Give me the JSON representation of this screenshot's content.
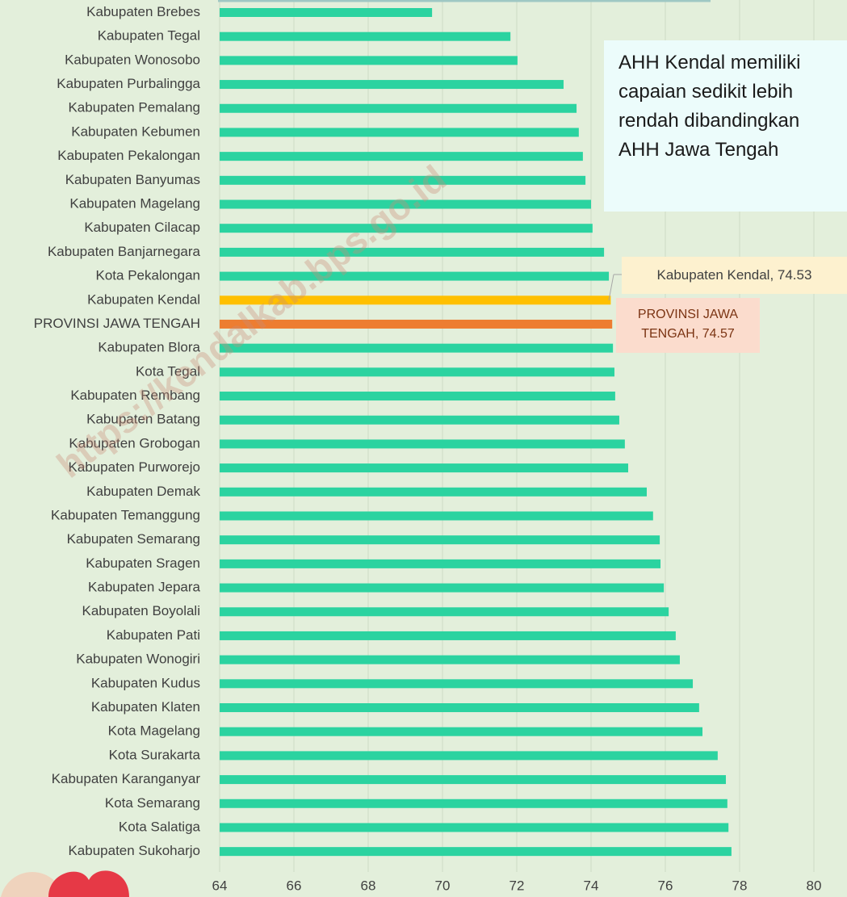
{
  "chart_data": {
    "type": "hbar",
    "categories": [
      "Kabupaten Brebes",
      "Kabupaten Tegal",
      "Kabupaten Wonosobo",
      "Kabupaten Purbalingga",
      "Kabupaten Pemalang",
      "Kabupaten Kebumen",
      "Kabupaten Pekalongan",
      "Kabupaten Banyumas",
      "Kabupaten Magelang",
      "Kabupaten Cilacap",
      "Kabupaten Banjarnegara",
      "Kota Pekalongan",
      "Kabupaten Kendal",
      "PROVINSI JAWA TENGAH",
      "Kabupaten Blora",
      "Kota Tegal",
      "Kabupaten Rembang",
      "Kabupaten Batang",
      "Kabupaten Grobogan",
      "Kabupaten Purworejo",
      "Kabupaten Demak",
      "Kabupaten Temanggung",
      "Kabupaten Semarang",
      "Kabupaten Sragen",
      "Kabupaten Jepara",
      "Kabupaten Boyolali",
      "Kabupaten Pati",
      "Kabupaten Wonogiri",
      "Kabupaten Kudus",
      "Kabupaten Klaten",
      "Kota Magelang",
      "Kota Surakarta",
      "Kabupaten Karanganyar",
      "Kota Semarang",
      "Kota Salatiga",
      "Kabupaten Sukoharjo"
    ],
    "values": [
      69.72,
      71.83,
      72.02,
      73.26,
      73.61,
      73.67,
      73.78,
      73.85,
      74.0,
      74.04,
      74.35,
      74.48,
      74.53,
      74.57,
      74.59,
      74.63,
      74.65,
      74.76,
      74.91,
      75.0,
      75.5,
      75.67,
      75.85,
      75.87,
      75.96,
      76.09,
      76.28,
      76.39,
      76.74,
      76.91,
      77.0,
      77.41,
      77.63,
      77.67,
      77.7,
      77.78
    ],
    "colors": [
      "#2bd3a0",
      "#2bd3a0",
      "#2bd3a0",
      "#2bd3a0",
      "#2bd3a0",
      "#2bd3a0",
      "#2bd3a0",
      "#2bd3a0",
      "#2bd3a0",
      "#2bd3a0",
      "#2bd3a0",
      "#2bd3a0",
      "#ffc000",
      "#ed7d31",
      "#2bd3a0",
      "#2bd3a0",
      "#2bd3a0",
      "#2bd3a0",
      "#2bd3a0",
      "#2bd3a0",
      "#2bd3a0",
      "#2bd3a0",
      "#2bd3a0",
      "#2bd3a0",
      "#2bd3a0",
      "#2bd3a0",
      "#2bd3a0",
      "#2bd3a0",
      "#2bd3a0",
      "#2bd3a0",
      "#2bd3a0",
      "#2bd3a0",
      "#2bd3a0",
      "#2bd3a0",
      "#2bd3a0",
      "#2bd3a0"
    ],
    "xlim": [
      64,
      80.7
    ],
    "xticks": [
      64,
      66,
      68,
      70,
      72,
      74,
      76,
      78,
      80
    ],
    "grid": true,
    "data_labels": [
      {
        "text": "Kabupaten Kendal, 74.53"
      },
      {
        "text": "PROVINSI JAWA TENGAH, 74.57"
      }
    ],
    "annotation": "AHH Kendal memiliki capaian sedikit lebih rendah dibandingkan AHH Jawa Tengah",
    "watermark": "https://kendalkab.bps.go.id"
  }
}
